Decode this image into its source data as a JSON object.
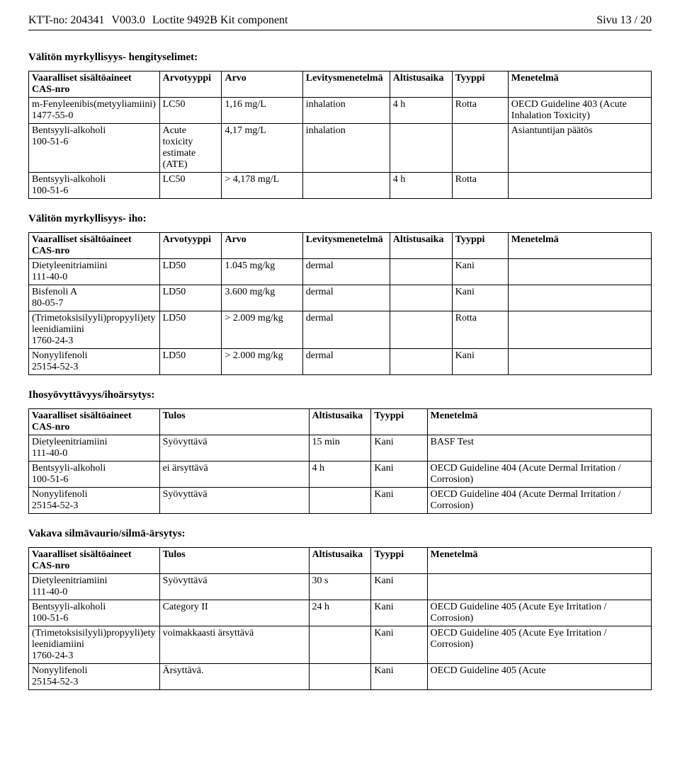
{
  "header": {
    "ktt_label": "KTT-no:",
    "ktt_no": "204341",
    "version": "V003.0",
    "product": "Loctite 9492B Kit component",
    "page": "Sivu 13 / 20"
  },
  "sections": {
    "inhalation": {
      "title": "Välitön myrkyllisyys- hengityselimet:",
      "headers": [
        "Vaaralliset sisältöaineet\nCAS-nro",
        "Arvotyyppi",
        "Arvo",
        "Levitysmenetelmä",
        "Altistusaika",
        "Tyyppi",
        "Menetelmä"
      ],
      "rows": [
        [
          "m-Fenyleenibis(metyyliamiini)\n1477-55-0",
          "LC50",
          "1,16 mg/L",
          "inhalation",
          "4 h",
          "Rotta",
          "OECD Guideline 403 (Acute Inhalation Toxicity)"
        ],
        [
          "Bentsyyli-alkoholi\n100-51-6",
          "Acute toxicity estimate (ATE)",
          "4,17 mg/L",
          "inhalation",
          "",
          "",
          "Asiantuntijan päätös"
        ],
        [
          "Bentsyyli-alkoholi\n100-51-6",
          "LC50",
          "> 4,178 mg/L",
          "",
          "4 h",
          "Rotta",
          ""
        ]
      ]
    },
    "iho": {
      "title": "Välitön myrkyllisyys- iho:",
      "headers": [
        "Vaaralliset sisältöaineet\nCAS-nro",
        "Arvotyyppi",
        "Arvo",
        "Levitysmenetelmä",
        "Altistusaika",
        "Tyyppi",
        "Menetelmä"
      ],
      "rows": [
        [
          "Dietyleenitriamiini\n111-40-0",
          "LD50",
          "1.045 mg/kg",
          "dermal",
          "",
          "Kani",
          ""
        ],
        [
          "Bisfenoli A\n80-05-7",
          "LD50",
          "3.600 mg/kg",
          "dermal",
          "",
          "Kani",
          ""
        ],
        [
          "(Trimetoksisilyyli)propyyli)etyleenidiamiini\n1760-24-3",
          "LD50",
          "> 2.009 mg/kg",
          "dermal",
          "",
          "Rotta",
          ""
        ],
        [
          "Nonyylifenoli\n25154-52-3",
          "LD50",
          "> 2.000 mg/kg",
          "dermal",
          "",
          "Kani",
          ""
        ]
      ]
    },
    "ihosyov": {
      "title": "Ihosyövyttävyys/ihoärsytys:",
      "headers": [
        "Vaaralliset sisältöaineet\nCAS-nro",
        "Tulos",
        "Altistusaika",
        "Tyyppi",
        "Menetelmä"
      ],
      "rows": [
        [
          "Dietyleenitriamiini\n111-40-0",
          "Syövyttävä",
          "15 min",
          "Kani",
          "BASF Test"
        ],
        [
          "Bentsyyli-alkoholi\n100-51-6",
          "ei ärsyttävä",
          "4 h",
          "Kani",
          "OECD Guideline 404 (Acute Dermal Irritation / Corrosion)"
        ],
        [
          "Nonyylifenoli\n25154-52-3",
          "Syövyttävä",
          "",
          "Kani",
          "OECD Guideline 404 (Acute Dermal Irritation / Corrosion)"
        ]
      ]
    },
    "silma": {
      "title": "Vakava silmävaurio/silmä-ärsytys:",
      "headers": [
        "Vaaralliset sisältöaineet\nCAS-nro",
        "Tulos",
        "Altistusaika",
        "Tyyppi",
        "Menetelmä"
      ],
      "rows": [
        [
          "Dietyleenitriamiini\n111-40-0",
          "Syövyttävä",
          "30 s",
          "Kani",
          ""
        ],
        [
          "Bentsyyli-alkoholi\n100-51-6",
          "Category II",
          "24 h",
          "Kani",
          "OECD Guideline 405 (Acute Eye Irritation / Corrosion)"
        ],
        [
          "(Trimetoksisilyyli)propyyli)etyleenidiamiini\n1760-24-3",
          "voimakkaasti ärsyttävä",
          "",
          "Kani",
          "OECD Guideline 405 (Acute Eye Irritation / Corrosion)"
        ],
        [
          "Nonyylifenoli\n25154-52-3",
          "Ärsyttävä.",
          "",
          "Kani",
          "OECD Guideline 405 (Acute"
        ]
      ]
    }
  }
}
